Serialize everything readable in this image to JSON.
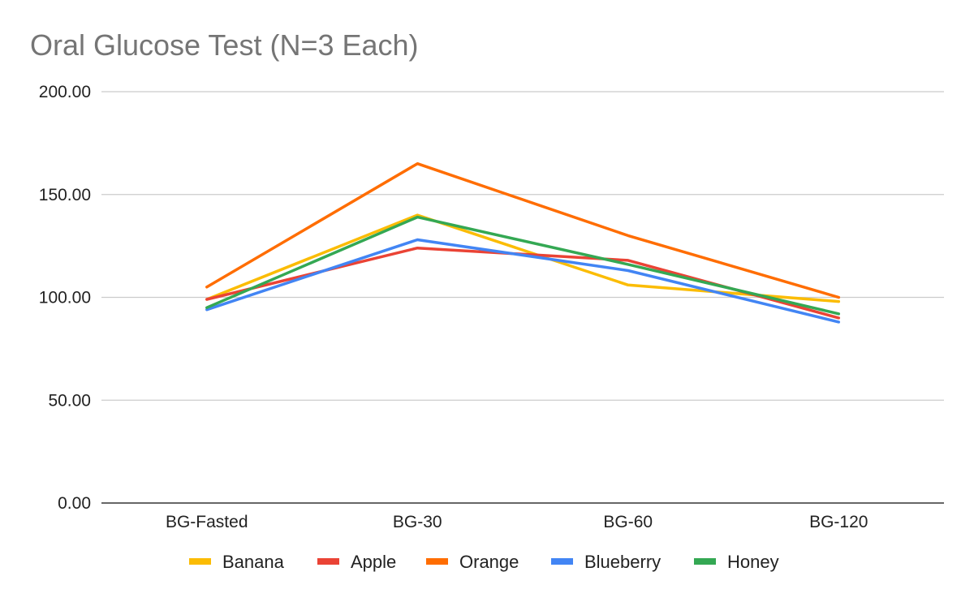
{
  "chart_data": {
    "type": "line",
    "title": "Oral Glucose Test (N=3 Each)",
    "xlabel": "",
    "ylabel": "",
    "categories": [
      "BG-Fasted",
      "BG-30",
      "BG-60",
      "BG-120"
    ],
    "ylim": [
      0,
      200
    ],
    "yticks": [
      "0.00",
      "50.00",
      "100.00",
      "150.00",
      "200.00"
    ],
    "yticks_values": [
      0,
      50,
      100,
      150,
      200
    ],
    "grid": true,
    "legend_position": "bottom",
    "series": [
      {
        "name": "Banana",
        "color": "#fbbc04",
        "values": [
          99,
          140,
          106,
          98
        ]
      },
      {
        "name": "Apple",
        "color": "#ea4335",
        "values": [
          99,
          124,
          118,
          90
        ]
      },
      {
        "name": "Orange",
        "color": "#ff6d01",
        "values": [
          105,
          165,
          130,
          100
        ]
      },
      {
        "name": "Blueberry",
        "color": "#4285f4",
        "values": [
          94,
          128,
          113,
          88
        ]
      },
      {
        "name": "Honey",
        "color": "#34a853",
        "values": [
          95,
          139,
          116,
          92
        ]
      }
    ]
  }
}
